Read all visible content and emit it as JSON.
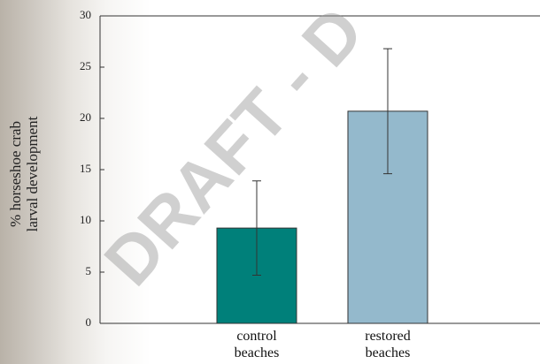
{
  "chart_data": {
    "type": "bar",
    "y_label": "% horseshoe crab larval development",
    "watermark": "DRAFT - D",
    "categories": [
      "control beaches",
      "restored beaches"
    ],
    "values": [
      9.3,
      20.7
    ],
    "errors": [
      4.6,
      6.1
    ],
    "colors": [
      "#00807a",
      "#94b9cc"
    ],
    "ylim": [
      0,
      30
    ],
    "yticks": [
      0,
      5,
      10,
      15,
      20,
      25,
      30
    ]
  }
}
